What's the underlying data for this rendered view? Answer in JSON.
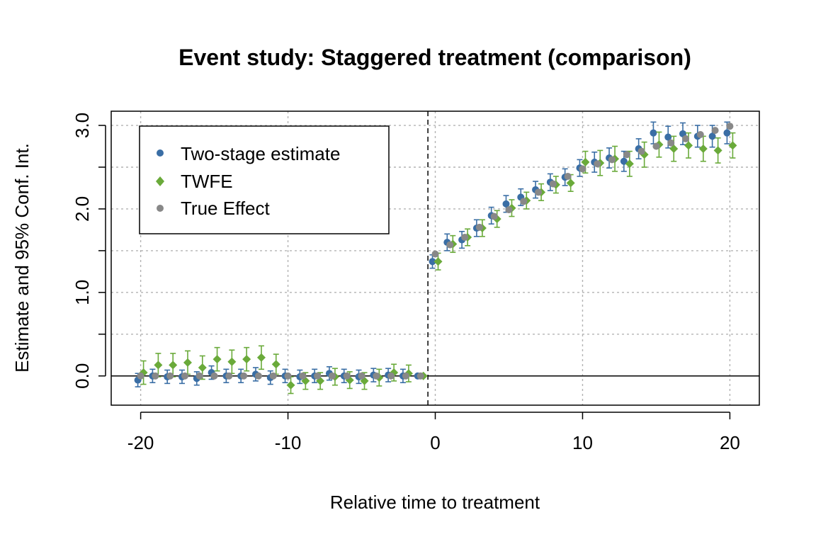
{
  "colors": {
    "two_stage": "#3a6ea5",
    "twfe": "#6aaa3a",
    "true_effect": "#888888",
    "frame": "#000000"
  },
  "chart_data": {
    "type": "scatter",
    "title": "Event study: Staggered treatment (comparison)",
    "xlabel": "Relative time to treatment",
    "ylabel": "Estimate and 95% Conf. Int.",
    "xlim": [
      -22,
      22
    ],
    "ylim": [
      -0.35,
      3.17
    ],
    "x_ticks": [
      -20,
      -10,
      0,
      10,
      20
    ],
    "x_tick_labels": [
      "-20",
      "-10",
      "0",
      "10",
      "20"
    ],
    "y_ticks": [
      0,
      0.5,
      1,
      1.5,
      2,
      2.5,
      3
    ],
    "y_tick_labels": [
      "0.0",
      "",
      "1.0",
      "",
      "2.0",
      "",
      "3.0"
    ],
    "grid": true,
    "vline": -0.5,
    "hline": 0,
    "legend_position": "top-left",
    "x": [
      -20,
      -19,
      -18,
      -17,
      -16,
      -15,
      -14,
      -13,
      -12,
      -11,
      -10,
      -9,
      -8,
      -7,
      -6,
      -5,
      -4,
      -3,
      -2,
      -1,
      0,
      1,
      2,
      3,
      4,
      5,
      6,
      7,
      8,
      9,
      10,
      11,
      12,
      13,
      14,
      15,
      16,
      17,
      18,
      19,
      20
    ],
    "series": [
      {
        "name": "Two-stage estimate",
        "marker": "circle",
        "values": [
          -0.05,
          0.0,
          -0.01,
          -0.01,
          -0.03,
          0.04,
          0.0,
          0.0,
          0.02,
          -0.02,
          0.0,
          -0.01,
          0.0,
          0.03,
          0.0,
          -0.01,
          0.01,
          0.01,
          0.0,
          0.0,
          1.37,
          1.6,
          1.63,
          1.77,
          1.92,
          2.06,
          2.14,
          2.23,
          2.32,
          2.38,
          2.49,
          2.56,
          2.61,
          2.57,
          2.72,
          2.91,
          2.86,
          2.9,
          2.87,
          2.87,
          2.91
        ],
        "ci_half": [
          0.08,
          0.08,
          0.08,
          0.08,
          0.08,
          0.08,
          0.08,
          0.08,
          0.08,
          0.08,
          0.08,
          0.08,
          0.08,
          0.08,
          0.08,
          0.08,
          0.08,
          0.08,
          0.08,
          0.0,
          0.08,
          0.1,
          0.1,
          0.1,
          0.1,
          0.1,
          0.1,
          0.1,
          0.1,
          0.1,
          0.1,
          0.12,
          0.12,
          0.12,
          0.12,
          0.13,
          0.13,
          0.13,
          0.13,
          0.13,
          0.13
        ]
      },
      {
        "name": "TWFE",
        "marker": "diamond",
        "values": [
          0.04,
          0.13,
          0.13,
          0.16,
          0.1,
          0.2,
          0.17,
          0.2,
          0.22,
          0.14,
          -0.11,
          -0.06,
          -0.06,
          -0.01,
          -0.05,
          -0.06,
          -0.02,
          0.04,
          0.03,
          0.0,
          1.37,
          1.58,
          1.66,
          1.77,
          1.88,
          2.01,
          2.1,
          2.2,
          2.29,
          2.31,
          2.56,
          2.55,
          2.6,
          2.54,
          2.65,
          2.77,
          2.72,
          2.76,
          2.72,
          2.7,
          2.76
        ],
        "ci_half": [
          0.14,
          0.14,
          0.14,
          0.14,
          0.14,
          0.14,
          0.14,
          0.14,
          0.14,
          0.12,
          0.1,
          0.1,
          0.1,
          0.1,
          0.1,
          0.1,
          0.1,
          0.1,
          0.1,
          0.0,
          0.1,
          0.1,
          0.1,
          0.1,
          0.1,
          0.1,
          0.1,
          0.1,
          0.1,
          0.1,
          0.13,
          0.15,
          0.15,
          0.15,
          0.15,
          0.15,
          0.15,
          0.15,
          0.15,
          0.15,
          0.15
        ]
      },
      {
        "name": "True Effect",
        "marker": "circle",
        "values": [
          0.0,
          0.0,
          0.0,
          0.0,
          0.0,
          0.0,
          0.0,
          0.0,
          0.0,
          0.0,
          0.0,
          0.0,
          0.0,
          0.0,
          0.0,
          0.0,
          0.0,
          0.0,
          0.0,
          0.0,
          1.46,
          1.57,
          1.66,
          1.78,
          1.91,
          1.99,
          2.09,
          2.2,
          2.3,
          2.39,
          2.48,
          2.54,
          2.59,
          2.65,
          2.69,
          2.75,
          2.79,
          2.84,
          2.89,
          2.94,
          2.99
        ]
      }
    ]
  }
}
